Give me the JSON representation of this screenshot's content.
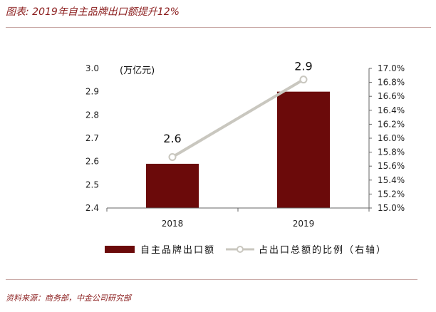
{
  "header": {
    "title": "图表: 2019年自主品牌出口额提升12%"
  },
  "footer": {
    "source": "资料来源：商务部，中金公司研究部"
  },
  "chart_data": {
    "type": "bar",
    "categories": [
      "2018",
      "2019"
    ],
    "y_unit_label": "(万亿元)",
    "ylim": [
      2.4,
      3.0
    ],
    "yticks": [
      "2.4",
      "2.5",
      "2.6",
      "2.7",
      "2.8",
      "2.9",
      "3.0"
    ],
    "y2lim": [
      15.0,
      17.0
    ],
    "y2ticks": [
      "15.0%",
      "15.2%",
      "15.4%",
      "15.6%",
      "15.8%",
      "16.0%",
      "16.2%",
      "16.4%",
      "16.6%",
      "16.8%",
      "17.0%"
    ],
    "series": [
      {
        "name": "自主品牌出口额",
        "type": "bar",
        "axis": "left",
        "values": [
          2.59,
          2.9
        ],
        "labels": [
          "2.6",
          "2.9"
        ],
        "color": "#6b0a0a"
      },
      {
        "name": "占出口总额的比例（右轴）",
        "type": "line",
        "axis": "right",
        "values": [
          15.73,
          16.84
        ],
        "color": "#c9c7bf"
      }
    ],
    "grid": false,
    "legend_position": "bottom"
  }
}
